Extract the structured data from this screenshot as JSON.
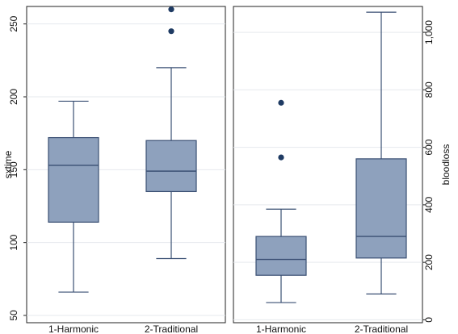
{
  "chart_data": [
    {
      "type": "box",
      "title": "",
      "xlabel": "",
      "ylabel": "sxtime",
      "y_axis_side": "left",
      "ylim": [
        45,
        262
      ],
      "yticks": [
        50,
        100,
        150,
        200,
        250
      ],
      "ytick_labels": [
        "50",
        "100",
        "150",
        "200",
        "250"
      ],
      "grid": true,
      "categories": [
        "1-Harmonic",
        "2-Traditional"
      ],
      "boxes": [
        {
          "category": "1-Harmonic",
          "whisker_low": 66,
          "q1": 114,
          "median": 153,
          "q3": 172,
          "whisker_high": 197,
          "outliers": []
        },
        {
          "category": "2-Traditional",
          "whisker_low": 89,
          "q1": 135,
          "median": 149,
          "q3": 170,
          "whisker_high": 220,
          "outliers": [
            245,
            260
          ]
        }
      ],
      "colors": {
        "box_fill": "#8ea1bd",
        "box_stroke": "#3a4f73",
        "outlier": "#1f3b63"
      }
    },
    {
      "type": "box",
      "title": "",
      "xlabel": "",
      "ylabel": "bloodloss",
      "y_axis_side": "right",
      "ylim": [
        -10,
        1090
      ],
      "yticks": [
        0,
        200,
        400,
        600,
        800,
        1000
      ],
      "ytick_labels": [
        "0",
        "200",
        "400",
        "600",
        "800",
        "1,000"
      ],
      "grid": true,
      "categories": [
        "1-Harmonic",
        "2-Traditional"
      ],
      "boxes": [
        {
          "category": "1-Harmonic",
          "whisker_low": 60,
          "q1": 155,
          "median": 210,
          "q3": 290,
          "whisker_high": 385,
          "outliers": [
            565,
            755
          ]
        },
        {
          "category": "2-Traditional",
          "whisker_low": 90,
          "q1": 215,
          "median": 290,
          "q3": 560,
          "whisker_high": 1070,
          "outliers": []
        }
      ],
      "colors": {
        "box_fill": "#8ea1bd",
        "box_stroke": "#3a4f73",
        "outlier": "#1f3b63"
      }
    }
  ]
}
